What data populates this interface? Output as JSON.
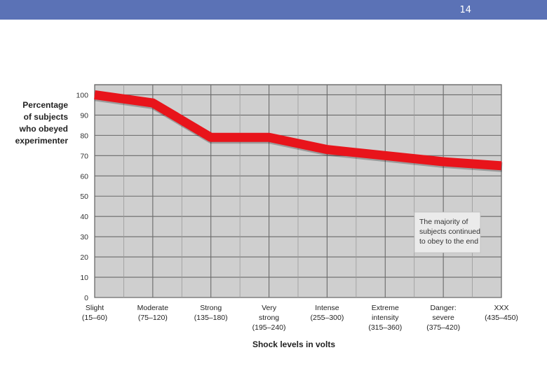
{
  "header": {
    "page_number": "14"
  },
  "chart_data": {
    "type": "line",
    "title": "",
    "ylabel_lines": [
      "Percentage",
      "of subjects",
      "who obeyed",
      "experimenter"
    ],
    "xlabel": "Shock levels in volts",
    "ylim": [
      0,
      105
    ],
    "yticks": [
      0,
      10,
      20,
      30,
      40,
      50,
      60,
      70,
      80,
      90,
      100
    ],
    "categories": [
      {
        "lines": [
          "Slight",
          "(15–60)"
        ]
      },
      {
        "lines": [
          "Moderate",
          "(75–120)"
        ]
      },
      {
        "lines": [
          "Strong",
          "(135–180)"
        ]
      },
      {
        "lines": [
          "Very",
          "strong",
          "(195–240)"
        ]
      },
      {
        "lines": [
          "Intense",
          "(255–300)"
        ]
      },
      {
        "lines": [
          "Extreme",
          "intensity",
          "(315–360)"
        ]
      },
      {
        "lines": [
          "Danger:",
          "severe",
          "(375–420)"
        ]
      },
      {
        "lines": [
          "XXX",
          "(435–450)"
        ]
      }
    ],
    "values": [
      100,
      96,
      79,
      79,
      73,
      70,
      67,
      65
    ],
    "annotation": {
      "lines": [
        "The majority of",
        "subjects continued",
        "to obey to the end"
      ]
    },
    "grid": true,
    "colors": {
      "line": "#e8141b",
      "plot_bg": "#cfcfcf",
      "grid": "#6a6a6a"
    }
  }
}
